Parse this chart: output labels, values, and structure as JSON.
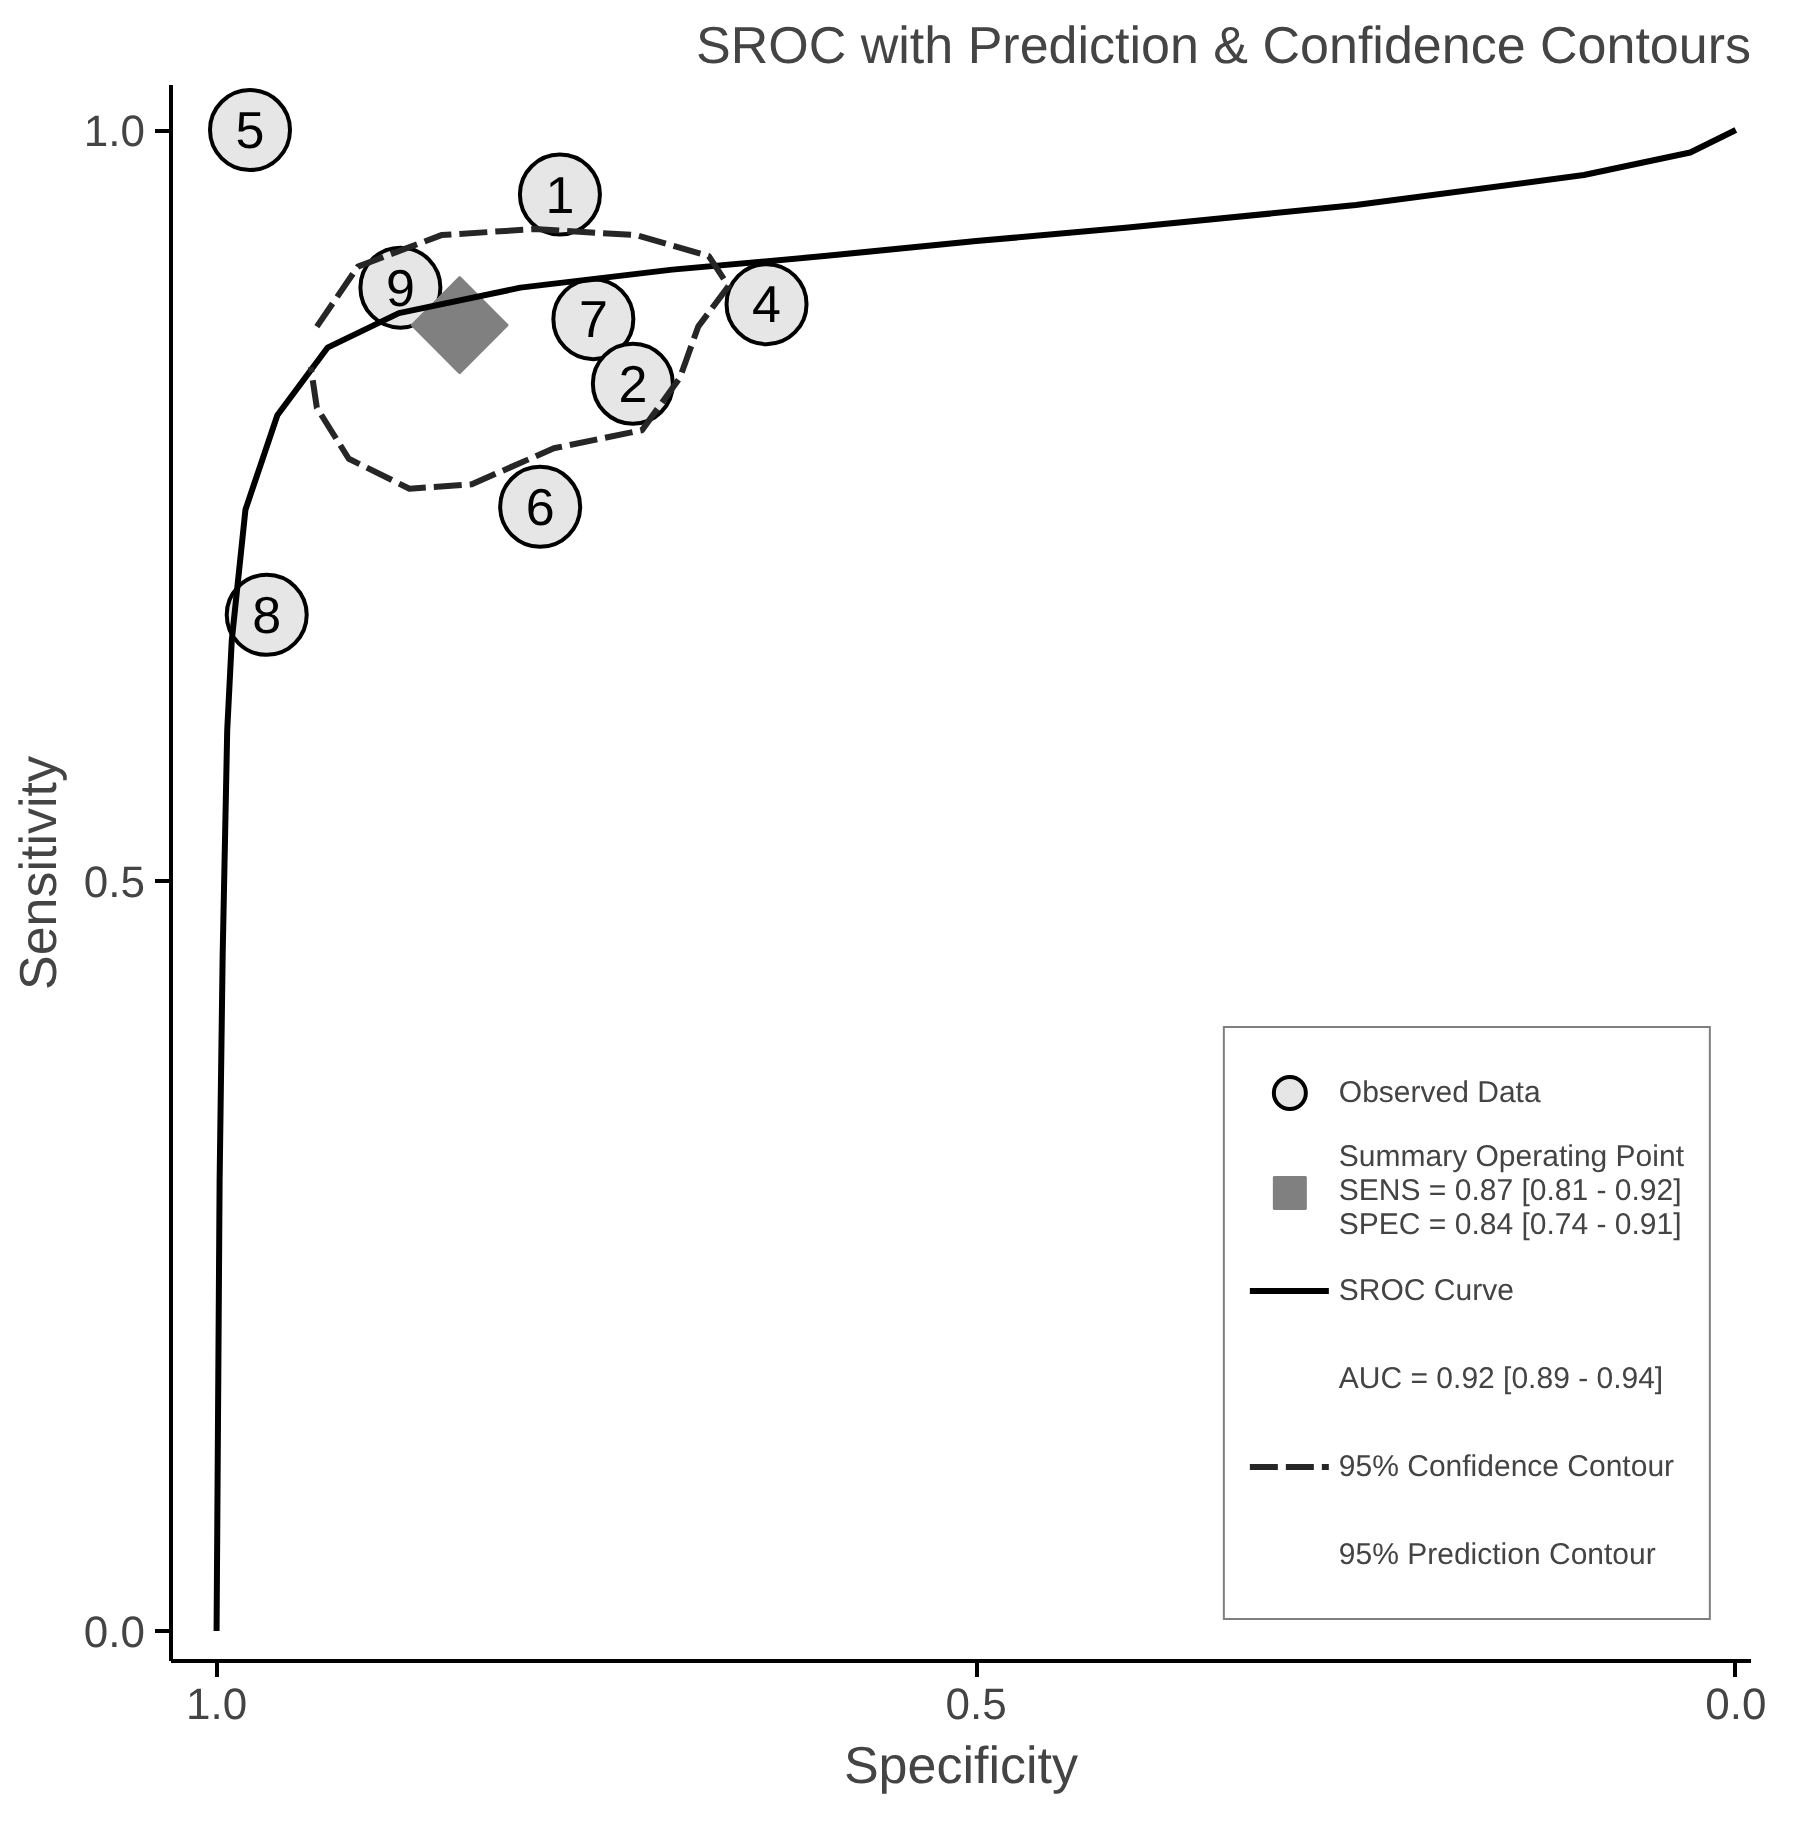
{
  "chart_data": {
    "type": "scatter",
    "title": "SROC with Prediction & Confidence Contours",
    "xlabel": "Specificity",
    "ylabel": "Sensitivity",
    "xlim": [
      1.03,
      -0.01
    ],
    "ylim": [
      -0.02,
      1.03
    ],
    "xticks": [
      {
        "value": 1.0,
        "label": "1.0"
      },
      0.5,
      {
        "value": 0.0,
        "label": "0.0"
      }
    ],
    "yticks": [
      {
        "value": 0.0,
        "label": "0.0"
      },
      0.5,
      {
        "value": 1.0,
        "label": "1.0"
      }
    ],
    "grid": false,
    "legend": "bottom right",
    "annotations": [
      {
        "text": "5",
        "x": 0.978,
        "y": 1.0
      },
      {
        "text": "1",
        "x": 0.774,
        "y": 0.957
      },
      {
        "text": "9",
        "x": 0.879,
        "y": 0.895
      },
      {
        "text": "4",
        "x": 0.638,
        "y": 0.884
      },
      {
        "text": "7",
        "x": 0.752,
        "y": 0.874
      },
      {
        "text": "2",
        "x": 0.726,
        "y": 0.831
      },
      {
        "text": "6",
        "x": 0.787,
        "y": 0.749
      },
      {
        "text": "8",
        "x": 0.967,
        "y": 0.677
      },
      "AUC = 0.92 [0.89 - 0.94]"
    ],
    "series": [
      {
        "name": "Observed Data",
        "marker": "circle",
        "color": "#e6e6e6",
        "x": [
          0.978,
          0.774,
          0.879,
          0.638,
          0.752,
          0.726,
          0.787,
          0.967
        ],
        "values": [
          1.0,
          0.957,
          0.895,
          0.884,
          0.874,
          0.831,
          0.749,
          0.677
        ]
      },
      {
        "name": "Summary Operating Point\nSENS = 0.87 [0.81 - 0.92]\nSPEC = 0.84 [0.74 - 0.91]",
        "marker": "diamond",
        "color": "#808080",
        "x": [
          0.84
        ],
        "values": [
          0.87
        ]
      },
      {
        "name": "SROC Curve",
        "type": "line",
        "line_style": "solid",
        "color": "#000000",
        "x": [
          1.0,
          0.998,
          0.996,
          0.993,
          0.99,
          0.981,
          0.96,
          0.927,
          0.88,
          0.8,
          0.7,
          0.6,
          0.5,
          0.4,
          0.25,
          0.1,
          0.03,
          0.0
        ],
        "values": [
          0.0,
          0.3,
          0.45,
          0.6,
          0.66,
          0.747,
          0.81,
          0.855,
          0.878,
          0.895,
          0.907,
          0.916,
          0.926,
          0.935,
          0.95,
          0.97,
          0.985,
          1.0
        ]
      },
      {
        "name": "95% Confidence Contour",
        "type": "line",
        "line_style": "dashed",
        "color": "#262626",
        "x": [
          0.934,
          0.907,
          0.852,
          0.791,
          0.724,
          0.676,
          0.663,
          0.683,
          0.695,
          0.72,
          0.778,
          0.832,
          0.873,
          0.913,
          0.934,
          0.938
        ],
        "values": [
          0.869,
          0.909,
          0.93,
          0.934,
          0.93,
          0.916,
          0.896,
          0.869,
          0.835,
          0.8,
          0.788,
          0.764,
          0.761,
          0.781,
          0.815,
          0.842
        ]
      },
      {
        "name": "95% Prediction Contour",
        "type": "line"
      }
    ]
  }
}
